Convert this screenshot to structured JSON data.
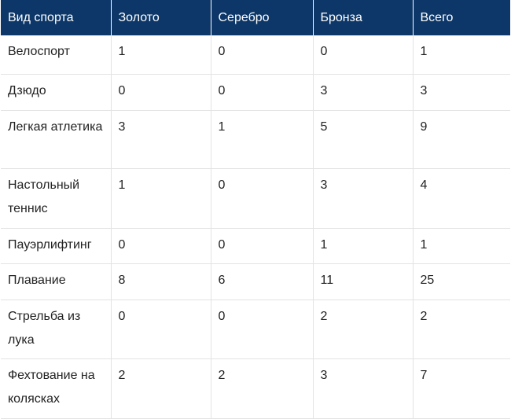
{
  "table": {
    "headers": [
      "Вид спорта",
      "Золото",
      "Серебро",
      "Бронза",
      "Всего"
    ],
    "rows": [
      [
        "Велоспорт",
        "1",
        "0",
        "0",
        "1"
      ],
      [
        "Дзюдо",
        "0",
        "0",
        "3",
        "3"
      ],
      [
        "Легкая атлетика",
        "3",
        "1",
        "5",
        "9"
      ],
      [
        "Настольный теннис",
        "1",
        "0",
        "3",
        "4"
      ],
      [
        "Пауэрлифтинг",
        "0",
        "0",
        "1",
        "1"
      ],
      [
        "Плавание",
        "8",
        "6",
        "11",
        "25"
      ],
      [
        "Стрельба из лука",
        "0",
        "0",
        "2",
        "2"
      ],
      [
        "Фехтование на колясках",
        "2",
        "2",
        "3",
        "7"
      ]
    ]
  },
  "colors": {
    "header_background": "#0d3768",
    "header_text": "#ffffff",
    "grid_line": "#e3e3e3"
  }
}
